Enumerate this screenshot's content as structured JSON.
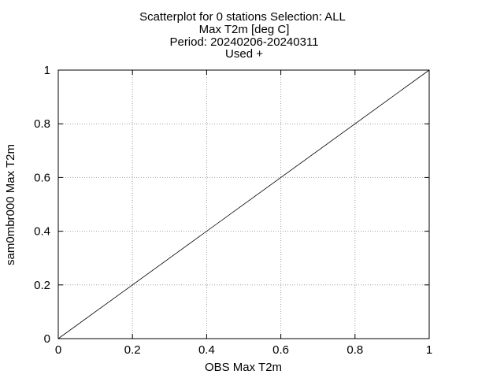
{
  "chart_data": {
    "type": "scatter",
    "title_lines": [
      "Scatterplot for    0 stations Selection: ALL",
      "Max T2m [deg C]",
      "Period: 20240206-20240311",
      "Used  +"
    ],
    "xlabel": "OBS Max T2m",
    "ylabel": "sam0mbr000 Max T2m",
    "xlim": [
      0,
      1
    ],
    "ylim": [
      0,
      1
    ],
    "xticks": [
      0,
      0.2,
      0.4,
      0.6,
      0.8,
      1
    ],
    "yticks": [
      0,
      0.2,
      0.4,
      0.6,
      0.8,
      1
    ],
    "xtick_labels": [
      "0",
      "0.2",
      "0.4",
      "0.6",
      "0.8",
      "1"
    ],
    "ytick_labels": [
      "0",
      "0.2",
      "0.4",
      "0.6",
      "0.8",
      "1"
    ],
    "grid": true,
    "reference_line": {
      "name": "y=x",
      "x": [
        0,
        1
      ],
      "y": [
        0,
        1
      ]
    },
    "series": [
      {
        "name": "Used",
        "marker": "+",
        "points": []
      }
    ]
  }
}
